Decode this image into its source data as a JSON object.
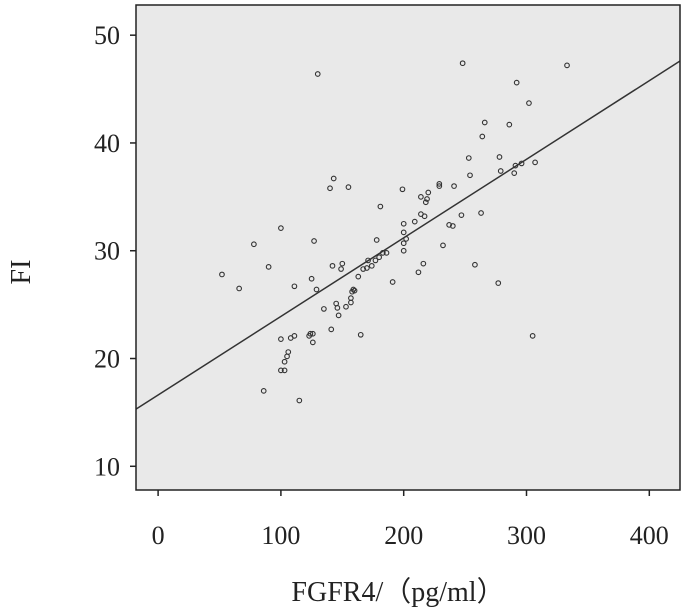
{
  "chart_data": {
    "type": "scatter",
    "title": "",
    "xlabel": "FGFR4/（pg/ml）",
    "ylabel": "FI",
    "xlim": [
      -18,
      425
    ],
    "ylim": [
      7.8,
      52.8
    ],
    "xticks": [
      0,
      100,
      200,
      300,
      400
    ],
    "yticks": [
      10,
      20,
      30,
      40,
      50
    ],
    "grid": false,
    "legend": "none",
    "colors": {
      "plot_background": "#e9e9e9",
      "marker_edge": "#333333",
      "fit_line": "#333333",
      "axes": "#222222"
    },
    "fit_line": {
      "x": [
        -18,
        425
      ],
      "y": [
        15.3,
        47.6
      ]
    },
    "points": [
      [
        52,
        27.8
      ],
      [
        66,
        26.5
      ],
      [
        78,
        30.6
      ],
      [
        90,
        28.5
      ],
      [
        86,
        17.0
      ],
      [
        100,
        32.1
      ],
      [
        100,
        21.8
      ],
      [
        100,
        18.9
      ],
      [
        103,
        19.7
      ],
      [
        103,
        18.9
      ],
      [
        105,
        20.2
      ],
      [
        106,
        20.6
      ],
      [
        108,
        21.9
      ],
      [
        111,
        26.7
      ],
      [
        111,
        22.1
      ],
      [
        115,
        16.1
      ],
      [
        123,
        22.1
      ],
      [
        124,
        22.3
      ],
      [
        126,
        22.3
      ],
      [
        126,
        21.5
      ],
      [
        125,
        27.4
      ],
      [
        127,
        30.9
      ],
      [
        129,
        26.4
      ],
      [
        130,
        46.4
      ],
      [
        135,
        24.6
      ],
      [
        140,
        35.8
      ],
      [
        141,
        22.7
      ],
      [
        142,
        28.6
      ],
      [
        143,
        36.7
      ],
      [
        145,
        25.1
      ],
      [
        146,
        24.7
      ],
      [
        147,
        24.0
      ],
      [
        149,
        28.3
      ],
      [
        150,
        28.8
      ],
      [
        153,
        24.8
      ],
      [
        155,
        35.9
      ],
      [
        157,
        25.2
      ],
      [
        157,
        25.6
      ],
      [
        158,
        26.2
      ],
      [
        159,
        26.4
      ],
      [
        160,
        26.3
      ],
      [
        163,
        27.6
      ],
      [
        165,
        22.2
      ],
      [
        167,
        28.3
      ],
      [
        170,
        28.4
      ],
      [
        171,
        29.1
      ],
      [
        174,
        28.6
      ],
      [
        177,
        29.1
      ],
      [
        178,
        31.0
      ],
      [
        180,
        29.4
      ],
      [
        181,
        34.1
      ],
      [
        183,
        29.8
      ],
      [
        186,
        29.8
      ],
      [
        191,
        27.1
      ],
      [
        199,
        35.7
      ],
      [
        200,
        32.5
      ],
      [
        200,
        31.7
      ],
      [
        200,
        30.7
      ],
      [
        200,
        30.0
      ],
      [
        202,
        31.1
      ],
      [
        209,
        32.7
      ],
      [
        212,
        28.0
      ],
      [
        214,
        33.4
      ],
      [
        214,
        35.0
      ],
      [
        216,
        28.8
      ],
      [
        217,
        33.2
      ],
      [
        218,
        34.5
      ],
      [
        219,
        34.8
      ],
      [
        220,
        35.4
      ],
      [
        229,
        36.0
      ],
      [
        229,
        36.2
      ],
      [
        232,
        30.5
      ],
      [
        237,
        32.4
      ],
      [
        240,
        32.3
      ],
      [
        241,
        36.0
      ],
      [
        247,
        33.3
      ],
      [
        248,
        47.4
      ],
      [
        253,
        38.6
      ],
      [
        254,
        37.0
      ],
      [
        258,
        28.7
      ],
      [
        263,
        33.5
      ],
      [
        264,
        40.6
      ],
      [
        266,
        41.9
      ],
      [
        277,
        27.0
      ],
      [
        278,
        38.7
      ],
      [
        279,
        37.4
      ],
      [
        286,
        41.7
      ],
      [
        290,
        37.2
      ],
      [
        291,
        37.9
      ],
      [
        292,
        45.6
      ],
      [
        296,
        38.1
      ],
      [
        302,
        43.7
      ],
      [
        305,
        22.1
      ],
      [
        307,
        38.2
      ],
      [
        333,
        47.2
      ]
    ]
  }
}
